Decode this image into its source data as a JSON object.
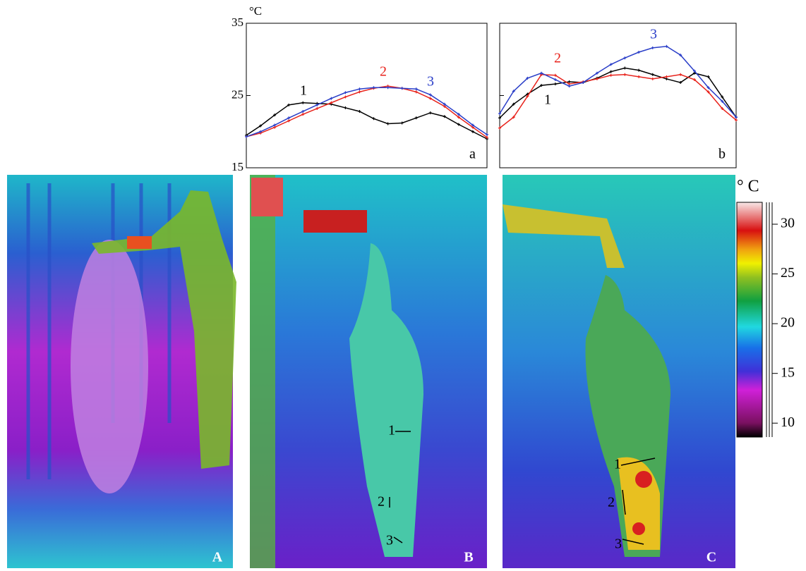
{
  "chart_data": [
    {
      "type": "line",
      "label": "a",
      "unit": "°C",
      "ylim": [
        15,
        35
      ],
      "yticks": [
        15,
        25,
        35
      ],
      "series": [
        {
          "name": "1",
          "color": "#000000",
          "values": [
            19.5,
            20.8,
            22.3,
            23.7,
            24.0,
            23.9,
            23.8,
            23.3,
            22.8,
            21.8,
            21.1,
            21.2,
            21.9,
            22.6,
            22.1,
            21.0,
            20.0,
            19.0
          ]
        },
        {
          "name": "2",
          "color": "#e8231c",
          "values": [
            19.3,
            19.8,
            20.6,
            21.5,
            22.4,
            23.2,
            24.0,
            24.8,
            25.5,
            26.0,
            26.3,
            26.0,
            25.5,
            24.6,
            23.5,
            22.0,
            20.6,
            19.2
          ]
        },
        {
          "name": "3",
          "color": "#2a3ec8",
          "values": [
            19.3,
            20.0,
            20.9,
            21.9,
            22.8,
            23.7,
            24.6,
            25.4,
            25.9,
            26.1,
            26.1,
            26.0,
            25.9,
            25.1,
            23.8,
            22.4,
            20.9,
            19.6
          ]
        }
      ]
    },
    {
      "type": "line",
      "label": "b",
      "ylim": [
        15,
        35
      ],
      "yticks": [
        15,
        25,
        35
      ],
      "series": [
        {
          "name": "1",
          "color": "#000000",
          "values": [
            21.9,
            23.8,
            25.2,
            26.4,
            26.6,
            26.9,
            26.8,
            27.4,
            28.3,
            28.8,
            28.5,
            27.9,
            27.3,
            26.8,
            28.1,
            27.6,
            24.8,
            22.0
          ]
        },
        {
          "name": "2",
          "color": "#e8231c",
          "values": [
            20.5,
            22.0,
            24.9,
            27.9,
            27.8,
            26.6,
            26.9,
            27.3,
            27.8,
            27.9,
            27.6,
            27.3,
            27.6,
            27.9,
            27.2,
            25.5,
            23.2,
            21.6
          ]
        },
        {
          "name": "3",
          "color": "#2a3ec8",
          "values": [
            22.5,
            25.6,
            27.4,
            28.1,
            27.2,
            26.3,
            26.8,
            28.1,
            29.3,
            30.2,
            31.0,
            31.6,
            31.8,
            30.6,
            28.4,
            26.1,
            24.2,
            22.0
          ]
        }
      ]
    }
  ],
  "images": [
    {
      "label": "A"
    },
    {
      "label": "B",
      "points": [
        "1",
        "2",
        "3"
      ]
    },
    {
      "label": "C",
      "points": [
        "1",
        "2",
        "3"
      ]
    }
  ],
  "colorbar": {
    "title": "° C",
    "ylim": [
      8.6,
      32.2
    ],
    "ticks": [
      10,
      15,
      20,
      25,
      30
    ]
  }
}
